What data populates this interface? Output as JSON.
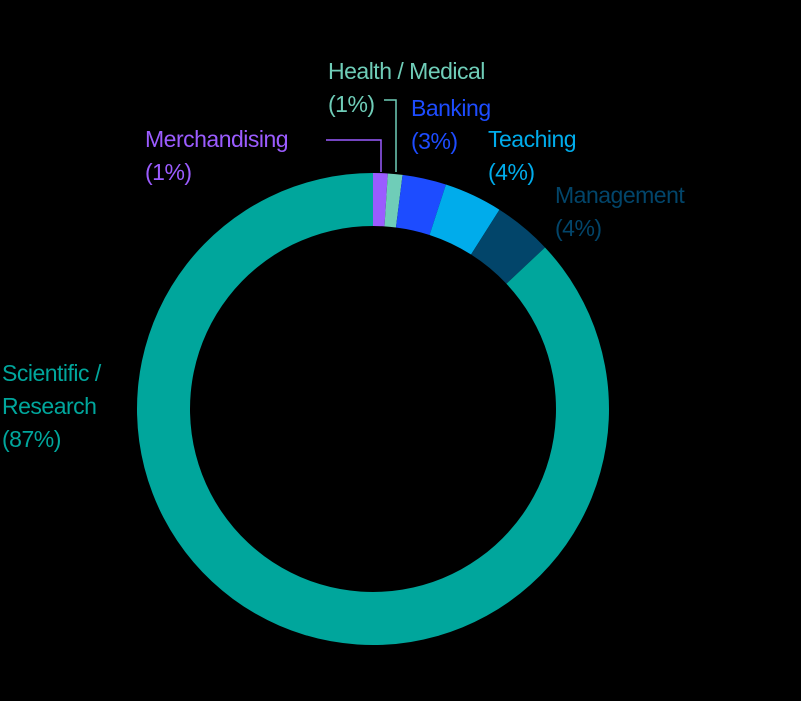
{
  "chart_data": {
    "type": "pie",
    "variant": "donut",
    "title": "",
    "start_angle_deg": 0,
    "direction": "clockwise",
    "slices": [
      {
        "name": "Merchandising",
        "label_lines": [
          "Merchandising",
          "(1%)"
        ],
        "value": 1,
        "color": "#9B5CFF"
      },
      {
        "name": "Health / Medical",
        "label_lines": [
          "Health / Medical",
          "(1%)"
        ],
        "value": 1,
        "color": "#6FCDB8"
      },
      {
        "name": "Banking",
        "label_lines": [
          "Banking",
          "(3%)"
        ],
        "value": 3,
        "color": "#1D4CFF"
      },
      {
        "name": "Teaching",
        "label_lines": [
          "Teaching",
          "(4%)"
        ],
        "value": 4,
        "color": "#00ACEB"
      },
      {
        "name": "Management",
        "label_lines": [
          "Management",
          "(4%)"
        ],
        "value": 4,
        "color": "#02456A"
      },
      {
        "name": "Scientific / Research",
        "label_lines": [
          "Scientific /",
          "Research",
          "(87%)"
        ],
        "value": 87,
        "color": "#00A69C"
      }
    ],
    "legend": "none (direct labels)"
  },
  "labels": {
    "merch": {
      "l1": "Merchandising",
      "l2": "(1%)"
    },
    "health": {
      "l1": "Health / Medical",
      "l2": "(1%)"
    },
    "banking": {
      "l1": "Banking",
      "l2": "(3%)"
    },
    "teaching": {
      "l1": "Teaching",
      "l2": "(4%)"
    },
    "management": {
      "l1": "Management",
      "l2": "(4%)"
    },
    "scientific": {
      "l1": "Scientific /",
      "l2": "Research",
      "l3": "(87%)"
    }
  }
}
